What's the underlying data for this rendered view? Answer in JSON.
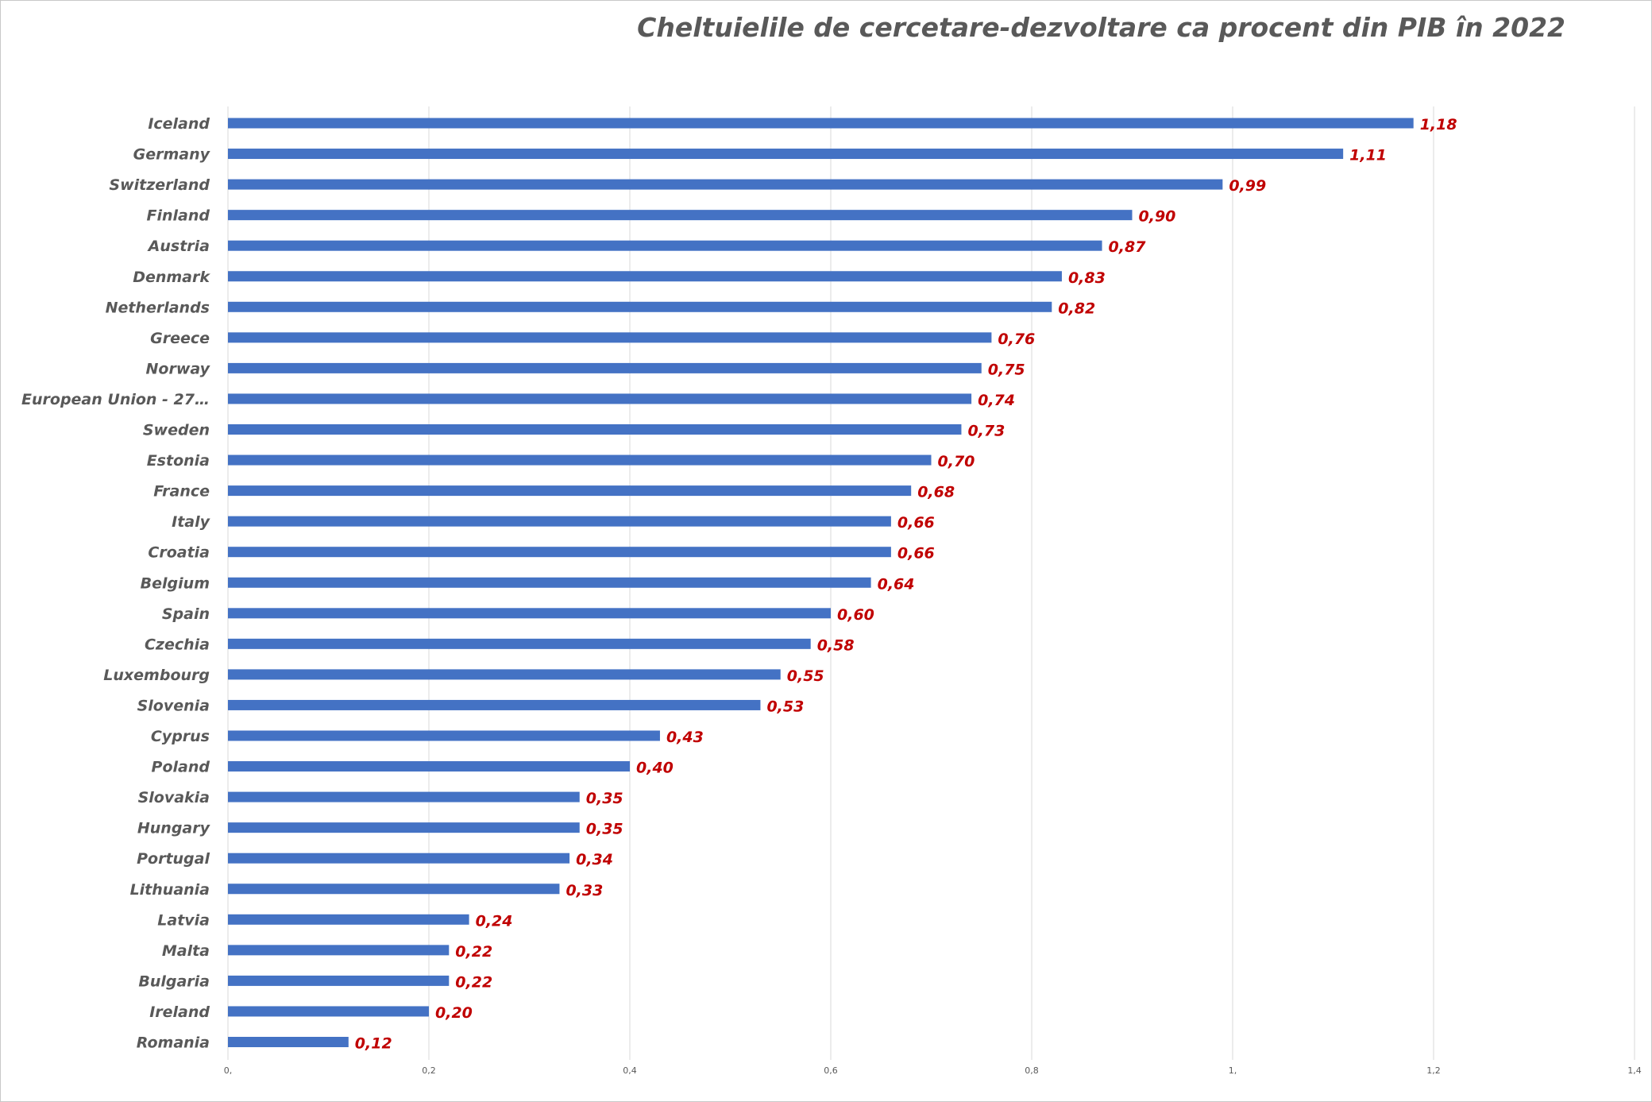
{
  "chart_data": {
    "type": "bar",
    "orientation": "horizontal",
    "title": "Cheltuielile de cercetare-dezvoltare ca procent din PIB în 2022",
    "categories": [
      "Iceland",
      "Germany",
      "Switzerland",
      "Finland",
      "Austria",
      "Denmark",
      "Netherlands",
      "Greece",
      "Norway",
      "European Union - 27…",
      "Sweden",
      "Estonia",
      "France",
      "Italy",
      "Croatia",
      "Belgium",
      "Spain",
      "Czechia",
      "Luxembourg",
      "Slovenia",
      "Cyprus",
      "Poland",
      "Slovakia",
      "Hungary",
      "Portugal",
      "Lithuania",
      "Latvia",
      "Malta",
      "Bulgaria",
      "Ireland",
      "Romania"
    ],
    "values": [
      1.18,
      1.11,
      0.99,
      0.9,
      0.87,
      0.83,
      0.82,
      0.76,
      0.75,
      0.74,
      0.73,
      0.7,
      0.68,
      0.66,
      0.66,
      0.64,
      0.6,
      0.58,
      0.55,
      0.53,
      0.43,
      0.4,
      0.35,
      0.35,
      0.34,
      0.33,
      0.24,
      0.22,
      0.22,
      0.2,
      0.12
    ],
    "data_labels": [
      "1,18",
      "1,11",
      "0,99",
      "0,90",
      "0,87",
      "0,83",
      "0,82",
      "0,76",
      "0,75",
      "0,74",
      "0,73",
      "0,70",
      "0,68",
      "0,66",
      "0,66",
      "0,64",
      "0,60",
      "0,58",
      "0,55",
      "0,53",
      "0,43",
      "0,40",
      "0,35",
      "0,35",
      "0,34",
      "0,33",
      "0,24",
      "0,22",
      "0,22",
      "0,20",
      "0,12"
    ],
    "xlim": [
      0,
      1.4
    ],
    "xticks": [
      0,
      0.2,
      0.4,
      0.6,
      0.8,
      1.0,
      1.2,
      1.4
    ],
    "xtick_labels": [
      "0,",
      "0,2",
      "0,4",
      "0,6",
      "0,8",
      "1,",
      "1,2",
      "1,4"
    ],
    "grid": "vertical",
    "legend": "none",
    "colors": {
      "bar": "#4472c4",
      "data_label": "#c00000",
      "text": "#595959",
      "grid": "#d9d9d9"
    }
  }
}
